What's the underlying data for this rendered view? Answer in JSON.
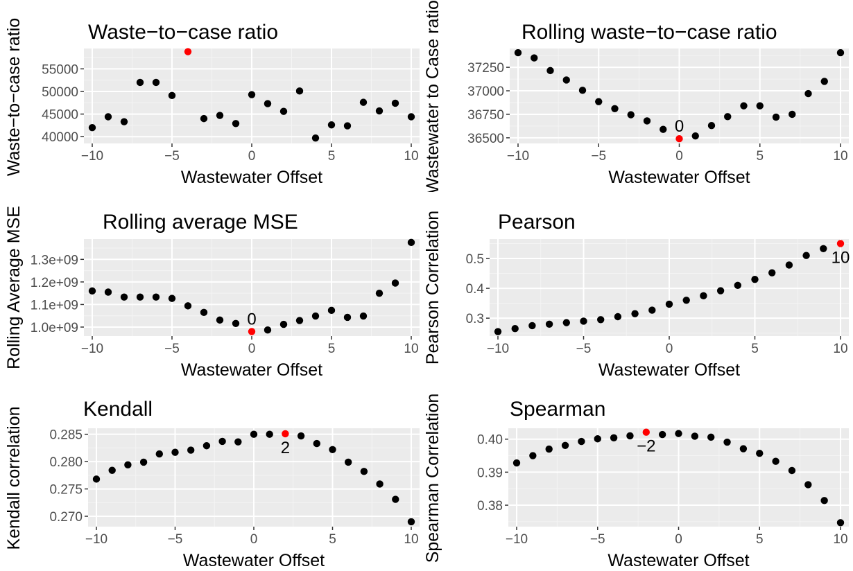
{
  "colors": {
    "panel_bg": "#ebebeb",
    "grid_major": "#ffffff",
    "grid_minor": "#f4f4f4",
    "point": "#000000",
    "highlight": "#ff0000",
    "tick_text": "#4d4d4d"
  },
  "chart_data": [
    {
      "type": "scatter",
      "title": "Waste−to−case ratio",
      "xlabel": "Wastewater Offset",
      "ylabel": "Waste−to−case ratio",
      "xlim": [
        -10,
        10
      ],
      "ylim": [
        38500,
        59500
      ],
      "xticks": [
        -10,
        -5,
        0,
        5,
        10
      ],
      "xtick_labels": [
        "−10",
        "−5",
        "0",
        "5",
        "10"
      ],
      "yticks": [
        40000,
        45000,
        50000,
        55000
      ],
      "ytick_labels": [
        "40000",
        "45000",
        "50000",
        "55000"
      ],
      "x": [
        -10,
        -9,
        -8,
        -7,
        -6,
        -5,
        -4,
        -3,
        -2,
        -1,
        0,
        1,
        2,
        3,
        4,
        5,
        6,
        7,
        8,
        9,
        10
      ],
      "y": [
        42000,
        44400,
        43300,
        52000,
        52000,
        49100,
        58800,
        44000,
        44700,
        42900,
        49300,
        47300,
        45600,
        50100,
        39700,
        42600,
        42400,
        47600,
        45700,
        47400,
        44400
      ],
      "highlight": {
        "x": -4,
        "y": 58800,
        "label": ""
      },
      "grid": true,
      "legend": "none"
    },
    {
      "type": "scatter",
      "title": "Rolling waste−to−case ratio",
      "xlabel": "Wastewater Offset",
      "ylabel": "Wastewater to Case ratio",
      "xlim": [
        -10,
        10
      ],
      "ylim": [
        36440,
        37450
      ],
      "xticks": [
        -10,
        -5,
        0,
        5,
        10
      ],
      "xtick_labels": [
        "−10",
        "−5",
        "0",
        "5",
        "10"
      ],
      "yticks": [
        36500,
        36750,
        37000,
        37250
      ],
      "ytick_labels": [
        "36500",
        "36750",
        "37000",
        "37250"
      ],
      "x": [
        -10,
        -9,
        -8,
        -7,
        -6,
        -5,
        -4,
        -3,
        -2,
        -1,
        0,
        1,
        2,
        3,
        4,
        5,
        6,
        7,
        8,
        9,
        10
      ],
      "y": [
        37405,
        37350,
        37215,
        37115,
        37005,
        36885,
        36810,
        36745,
        36680,
        36590,
        36490,
        36520,
        36630,
        36725,
        36840,
        36840,
        36720,
        36750,
        36970,
        37100,
        37405
      ],
      "highlight": {
        "x": 0,
        "y": 36490,
        "label": "0"
      },
      "grid": true,
      "legend": "none"
    },
    {
      "type": "scatter",
      "title": "Rolling average MSE",
      "xlabel": "Wastewater Offset",
      "ylabel": "Rolling Average MSE",
      "xlim": [
        -10,
        10
      ],
      "ylim": [
        960000000,
        1390000000
      ],
      "xticks": [
        -10,
        -5,
        0,
        5,
        10
      ],
      "xtick_labels": [
        "−10",
        "−5",
        "0",
        "5",
        "10"
      ],
      "yticks": [
        1000000000,
        1100000000,
        1200000000,
        1300000000
      ],
      "ytick_labels": [
        "1.0e+09",
        "1.1e+09",
        "1.2e+09",
        "1.3e+09"
      ],
      "x": [
        -10,
        -9,
        -8,
        -7,
        -6,
        -5,
        -4,
        -3,
        -2,
        -1,
        0,
        1,
        2,
        3,
        4,
        5,
        6,
        7,
        8,
        9,
        10
      ],
      "y": [
        1160000000,
        1155000000,
        1133000000,
        1133000000,
        1133000000,
        1127000000,
        1094000000,
        1065000000,
        1031000000,
        1016000000,
        980000000,
        987000000,
        1012000000,
        1029000000,
        1049000000,
        1074000000,
        1043000000,
        1049000000,
        1150000000,
        1195000000,
        1375000000
      ],
      "highlight": {
        "x": 0,
        "y": 980000000,
        "label": "0"
      },
      "grid": true,
      "legend": "none"
    },
    {
      "type": "scatter",
      "title": "Pearson",
      "xlabel": "Wastewater Offset",
      "ylabel": "Pearson Correlation",
      "xlim": [
        -10,
        10
      ],
      "ylim": [
        0.24,
        0.565
      ],
      "xticks": [
        -10,
        -5,
        0,
        5,
        10
      ],
      "xtick_labels": [
        "−10",
        "−5",
        "0",
        "5",
        "10"
      ],
      "yticks": [
        0.3,
        0.4,
        0.5
      ],
      "ytick_labels": [
        "0.3",
        "0.4",
        "0.5"
      ],
      "x": [
        -10,
        -9,
        -8,
        -7,
        -6,
        -5,
        -4,
        -3,
        -2,
        -1,
        0,
        1,
        2,
        3,
        4,
        5,
        6,
        7,
        8,
        9,
        10
      ],
      "y": [
        0.255,
        0.265,
        0.275,
        0.28,
        0.285,
        0.29,
        0.295,
        0.305,
        0.315,
        0.327,
        0.347,
        0.36,
        0.375,
        0.392,
        0.41,
        0.43,
        0.452,
        0.478,
        0.51,
        0.533,
        0.55
      ],
      "highlight": {
        "x": 10,
        "y": 0.55,
        "label": "10"
      },
      "grid": true,
      "legend": "none"
    },
    {
      "type": "scatter",
      "title": "Kendall",
      "xlabel": "Wastewater Offset",
      "ylabel": "Kendall correlation",
      "xlim": [
        -10,
        10
      ],
      "ylim": [
        0.2681,
        0.2861
      ],
      "xticks": [
        -10,
        -5,
        0,
        5,
        10
      ],
      "xtick_labels": [
        "−10",
        "−5",
        "0",
        "5",
        "10"
      ],
      "yticks": [
        0.27,
        0.275,
        0.28,
        0.285
      ],
      "ytick_labels": [
        "0.270",
        "0.275",
        "0.280",
        "0.285"
      ],
      "x": [
        -10,
        -9,
        -8,
        -7,
        -6,
        -5,
        -4,
        -3,
        -2,
        -1,
        0,
        1,
        2,
        3,
        4,
        5,
        6,
        7,
        8,
        9,
        10
      ],
      "y": [
        0.2768,
        0.2784,
        0.2794,
        0.2799,
        0.2814,
        0.2817,
        0.2821,
        0.2829,
        0.2837,
        0.2836,
        0.285,
        0.285,
        0.2851,
        0.2847,
        0.2833,
        0.2822,
        0.2799,
        0.2782,
        0.2759,
        0.2731,
        0.269
      ],
      "highlight": {
        "x": 2,
        "y": 0.2851,
        "label": "2"
      },
      "grid": true,
      "legend": "none"
    },
    {
      "type": "scatter",
      "title": "Spearman",
      "xlabel": "Wastewater Offset",
      "ylabel": "Spearman Correlation",
      "xlim": [
        -10,
        10
      ],
      "ylim": [
        0.3735,
        0.4033
      ],
      "xticks": [
        -10,
        -5,
        0,
        5,
        10
      ],
      "xtick_labels": [
        "−10",
        "−5",
        "0",
        "5",
        "10"
      ],
      "yticks": [
        0.38,
        0.39,
        0.4
      ],
      "ytick_labels": [
        "0.38",
        "0.39",
        "0.40"
      ],
      "x": [
        -10,
        -9,
        -8,
        -7,
        -6,
        -5,
        -4,
        -3,
        -2,
        -1,
        0,
        1,
        2,
        3,
        4,
        5,
        6,
        7,
        8,
        9,
        10
      ],
      "y": [
        0.3928,
        0.395,
        0.397,
        0.3981,
        0.3993,
        0.4001,
        0.4004,
        0.401,
        0.4021,
        0.4014,
        0.4017,
        0.4009,
        0.4006,
        0.3991,
        0.3971,
        0.3957,
        0.3933,
        0.3905,
        0.3862,
        0.3814,
        0.3747
      ],
      "highlight": {
        "x": -2,
        "y": 0.4021,
        "label": "−2"
      },
      "grid": true,
      "legend": "none"
    }
  ]
}
